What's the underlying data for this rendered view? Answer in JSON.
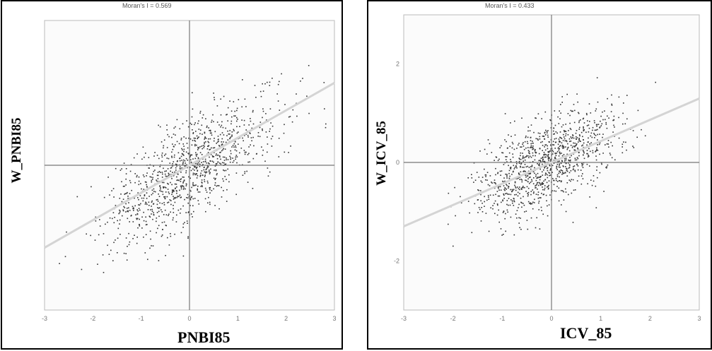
{
  "chart_data": [
    {
      "type": "scatter",
      "title": "Moran's I = 0.569",
      "xlabel": "PNBI85",
      "ylabel": "W_PNBI85",
      "xlim": [
        -3,
        3
      ],
      "ylim": [
        -3,
        3
      ],
      "x_ticks": [
        "-3",
        "-2",
        "-1",
        "0",
        "1",
        "2",
        "3"
      ],
      "grid": false,
      "regression_slope": 0.569,
      "point_color": "#333333",
      "axis_color": "#777777",
      "point_count": 1100,
      "cloud": {
        "center": [
          0.0,
          -0.1
        ],
        "sd": [
          0.9,
          0.75
        ],
        "correlation": 0.72
      }
    },
    {
      "type": "scatter",
      "title": "Moran's I = 0.433",
      "xlabel": "ICV_85",
      "ylabel": "W_ICV_85",
      "xlim": [
        -3,
        3
      ],
      "ylim": [
        -3,
        3
      ],
      "x_ticks": [
        "-3",
        "-2",
        "-1",
        "0",
        "1",
        "2",
        "3"
      ],
      "y_ticks": [
        "-2",
        "0",
        "2"
      ],
      "grid": false,
      "regression_slope": 0.433,
      "point_color": "#333333",
      "axis_color": "#777777",
      "point_count": 1100,
      "cloud": {
        "center": [
          -0.1,
          0.0
        ],
        "sd": [
          0.7,
          0.55
        ],
        "correlation": 0.6
      }
    }
  ]
}
